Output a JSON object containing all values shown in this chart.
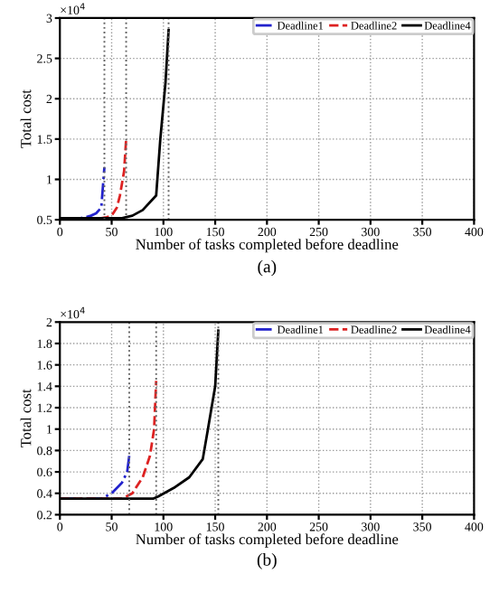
{
  "chart_data": [
    {
      "type": "line",
      "subtitle": "×10$^{4}$",
      "xlabel": "Number of tasks completed before deadline",
      "ylabel": "Total cost",
      "annotations": [
        "(a)"
      ],
      "grid": true,
      "legend": "top right",
      "xlim": [
        0,
        400
      ],
      "xticks": [
        0,
        50,
        100,
        150,
        200,
        250,
        300,
        350,
        400
      ],
      "ylim": [
        0.5,
        3
      ],
      "yticks": [
        0.5,
        1,
        1.5,
        2,
        2.5,
        3
      ],
      "series": [
        {
          "name": "Deadline1",
          "color": "#2222cc",
          "line_style": "dashdot",
          "x": [
            0,
            10,
            20,
            25,
            30,
            35,
            40,
            43
          ],
          "values": [
            0.52,
            0.52,
            0.52,
            0.53,
            0.55,
            0.58,
            0.65,
            1.15
          ]
        },
        {
          "name": "Deadline2",
          "color": "#dd2222",
          "line_style": "dashed",
          "x": [
            0,
            20,
            40,
            45,
            50,
            55,
            58,
            62,
            64
          ],
          "values": [
            0.52,
            0.52,
            0.52,
            0.53,
            0.55,
            0.65,
            0.8,
            1.1,
            1.5
          ]
        },
        {
          "name": "Deadline4",
          "color": "#000000",
          "line_style": "solid",
          "x": [
            0,
            20,
            40,
            60,
            70,
            80,
            93,
            97,
            102,
            105
          ],
          "values": [
            0.52,
            0.52,
            0.52,
            0.52,
            0.55,
            0.62,
            0.8,
            1.5,
            2.2,
            2.85
          ]
        }
      ],
      "ref_lines": [
        {
          "axis": "x",
          "value": 43,
          "label": null,
          "color": "#666666",
          "line_style": "dotted"
        },
        {
          "axis": "x",
          "value": 64,
          "label": null,
          "color": "#666666",
          "line_style": "dotted"
        },
        {
          "axis": "x",
          "value": 105,
          "label": null,
          "color": "#666666",
          "line_style": "dotted"
        }
      ]
    },
    {
      "type": "line",
      "subtitle": "×10$^{4}$",
      "xlabel": "Number of tasks completed before deadline",
      "ylabel": "Total cost",
      "annotations": [
        "(b)"
      ],
      "grid": true,
      "legend": "top right",
      "xlim": [
        0,
        400
      ],
      "xticks": [
        0,
        50,
        100,
        150,
        200,
        250,
        300,
        350,
        400
      ],
      "ylim": [
        0.2,
        2
      ],
      "yticks": [
        0.2,
        0.4,
        0.6,
        0.8,
        1,
        1.2,
        1.4,
        1.6,
        1.8,
        2
      ],
      "series": [
        {
          "name": "Deadline1",
          "color": "#2222cc",
          "line_style": "dashdot",
          "x": [
            0,
            20,
            40,
            50,
            60,
            65,
            67
          ],
          "values": [
            0.35,
            0.35,
            0.35,
            0.4,
            0.5,
            0.6,
            0.75
          ]
        },
        {
          "name": "Deadline2",
          "color": "#dd2222",
          "line_style": "dashed",
          "x": [
            0,
            30,
            60,
            70,
            80,
            87,
            91,
            93
          ],
          "values": [
            0.35,
            0.35,
            0.35,
            0.4,
            0.55,
            0.75,
            1.0,
            1.45
          ]
        },
        {
          "name": "Deadline4",
          "color": "#000000",
          "line_style": "solid",
          "x": [
            0,
            45,
            90,
            95,
            110,
            125,
            138,
            143,
            150,
            153
          ],
          "values": [
            0.35,
            0.35,
            0.35,
            0.37,
            0.45,
            0.55,
            0.72,
            1.0,
            1.4,
            1.92
          ]
        }
      ],
      "ref_lines": [
        {
          "axis": "x",
          "value": 67,
          "label": null,
          "color": "#666666",
          "line_style": "dotted"
        },
        {
          "axis": "x",
          "value": 93,
          "label": null,
          "color": "#666666",
          "line_style": "dotted"
        },
        {
          "axis": "x",
          "value": 153,
          "label": null,
          "color": "#666666",
          "line_style": "dotted"
        }
      ]
    }
  ]
}
